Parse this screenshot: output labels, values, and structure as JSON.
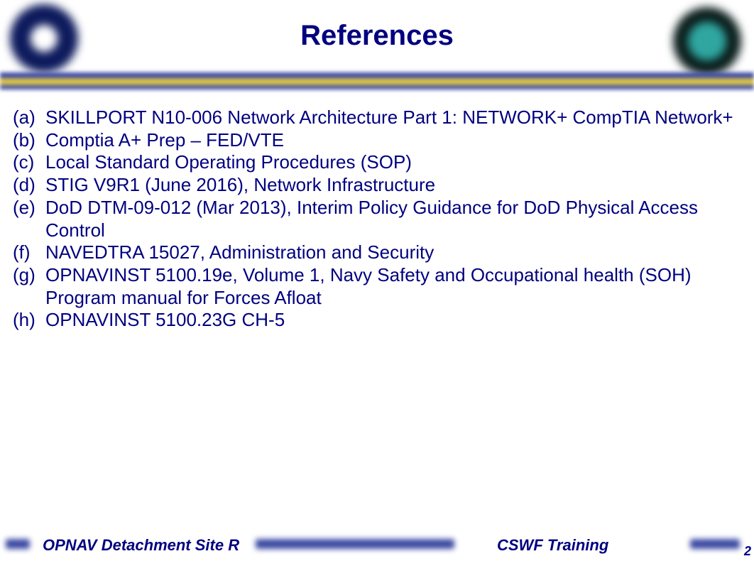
{
  "title": "References",
  "colors": {
    "text": "#000080",
    "band_blue": "#3b4aa4",
    "band_gold": "#d9c24a",
    "background": "#ffffff"
  },
  "typography": {
    "title_fontsize": 40,
    "body_fontsize": 26,
    "footer_fontsize": 22,
    "font_family": "Arial"
  },
  "references": [
    {
      "label": "(a)",
      "text": "SKILLPORT N10-006 Network Architecture Part 1: NETWORK+ CompTIA Network+"
    },
    {
      "label": "(b)",
      "text": "Comptia A+ Prep – FED/VTE"
    },
    {
      "label": "(c)",
      "text": "Local Standard Operating Procedures (SOP)"
    },
    {
      "label": "(d)",
      "text": "STIG V9R1 (June 2016), Network Infrastructure"
    },
    {
      "label": "(e)",
      "text": "DoD DTM-09-012 (Mar 2013), Interim Policy Guidance for DoD Physical Access Control"
    },
    {
      "label": "(f)",
      "text": "NAVEDTRA 15027, Administration and Security"
    },
    {
      "label": "(g)",
      "text": "OPNAVINST 5100.19e, Volume 1, Navy Safety and Occupational health (SOH) Program manual for Forces Afloat"
    },
    {
      "label": "(h)",
      "text": "OPNAVINST 5100.23G CH-5"
    }
  ],
  "footer": {
    "left": "OPNAV Detachment Site R",
    "right": "CSWF Training",
    "page_number": "2"
  }
}
